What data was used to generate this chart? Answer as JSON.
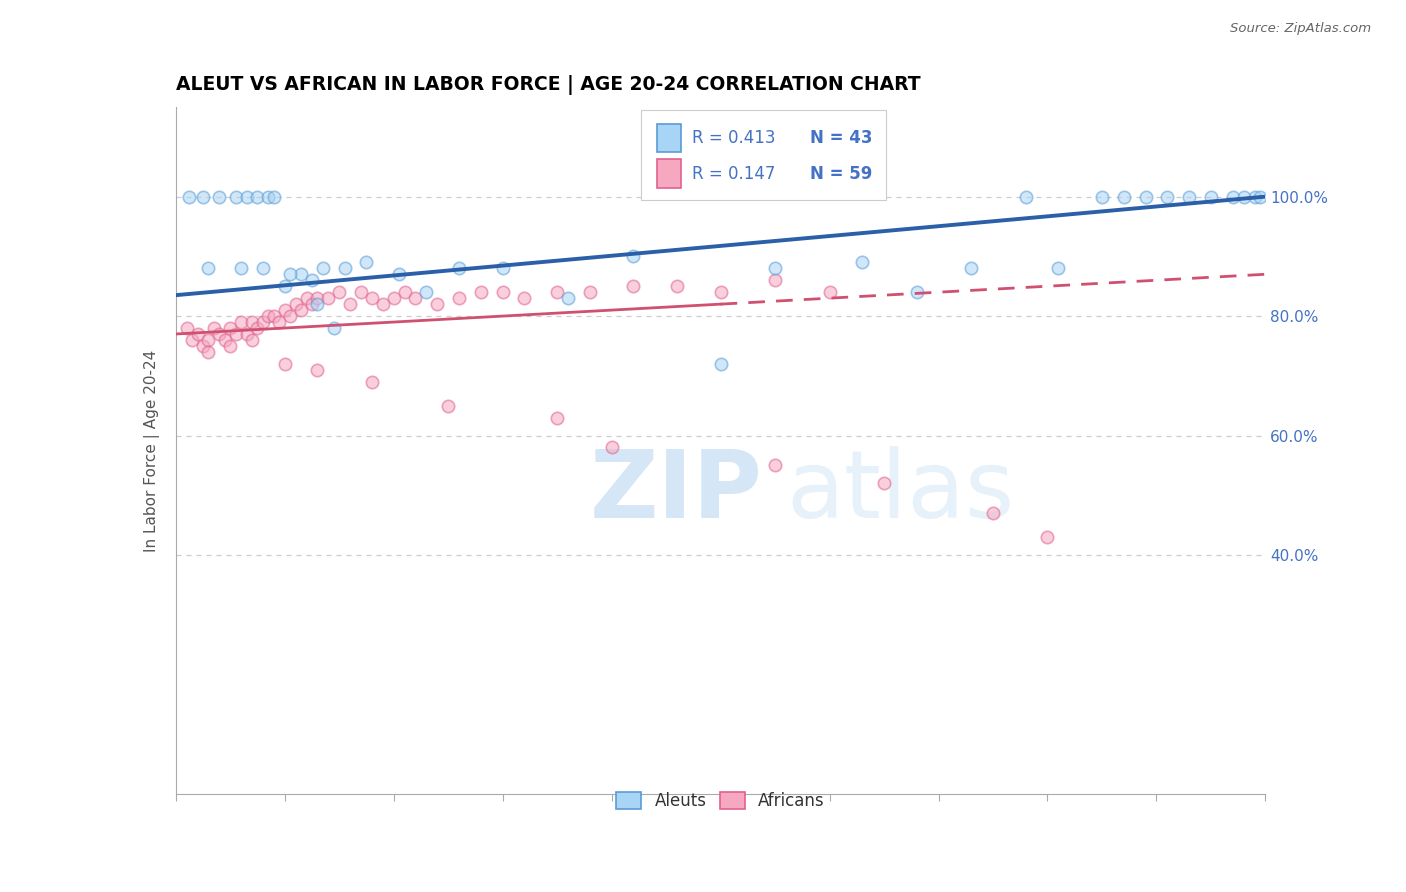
{
  "title": "ALEUT VS AFRICAN IN LABOR FORCE | AGE 20-24 CORRELATION CHART",
  "source": "Source: ZipAtlas.com",
  "ylabel": "In Labor Force | Age 20-24",
  "xlim": [
    0.0,
    100.0
  ],
  "ylim": [
    0.0,
    115.0
  ],
  "aleut_color": "#A8D4F5",
  "african_color": "#F5A8C0",
  "aleut_edge_color": "#5B9BD5",
  "african_edge_color": "#E06090",
  "trendline_aleut_color": "#2B5FA8",
  "trendline_african_color": "#D05070",
  "background_color": "#FFFFFF",
  "grid_color": "#CCCCCC",
  "axis_label_color": "#4472C4",
  "title_color": "#000000",
  "legend_R_aleut": "R = 0.413",
  "legend_N_aleut": "N = 43",
  "legend_R_african": "R = 0.147",
  "legend_N_african": "N = 59",
  "aleut_x": [
    1.2,
    2.5,
    4.0,
    5.5,
    6.5,
    7.5,
    8.5,
    9.0,
    10.0,
    11.5,
    12.5,
    13.0,
    14.5,
    3.0,
    6.0,
    8.0,
    10.5,
    13.5,
    15.5,
    17.5,
    20.5,
    23.0,
    26.0,
    30.0,
    36.0,
    42.0,
    50.0,
    55.0,
    63.0,
    68.0,
    73.0,
    78.0,
    81.0,
    85.0,
    87.0,
    89.0,
    91.0,
    93.0,
    95.0,
    97.0,
    98.0,
    99.0,
    99.5
  ],
  "aleut_y": [
    100.0,
    100.0,
    100.0,
    100.0,
    100.0,
    100.0,
    100.0,
    100.0,
    85.0,
    87.0,
    86.0,
    82.0,
    78.0,
    88.0,
    88.0,
    88.0,
    87.0,
    88.0,
    88.0,
    89.0,
    87.0,
    84.0,
    88.0,
    88.0,
    83.0,
    90.0,
    72.0,
    88.0,
    89.0,
    84.0,
    88.0,
    100.0,
    88.0,
    100.0,
    100.0,
    100.0,
    100.0,
    100.0,
    100.0,
    100.0,
    100.0,
    100.0,
    100.0
  ],
  "african_x": [
    1.0,
    1.5,
    2.0,
    2.5,
    3.0,
    3.5,
    4.0,
    4.5,
    5.0,
    5.5,
    6.0,
    6.5,
    7.0,
    7.5,
    8.0,
    8.5,
    9.0,
    9.5,
    10.0,
    10.5,
    11.0,
    11.5,
    12.0,
    12.5,
    13.0,
    14.0,
    15.0,
    16.0,
    17.0,
    18.0,
    19.0,
    20.0,
    21.0,
    22.0,
    24.0,
    26.0,
    28.0,
    30.0,
    32.0,
    35.0,
    38.0,
    42.0,
    46.0,
    50.0,
    55.0,
    60.0,
    3.0,
    5.0,
    7.0,
    10.0,
    13.0,
    18.0,
    25.0,
    35.0,
    40.0,
    55.0,
    65.0,
    75.0,
    80.0
  ],
  "african_y": [
    78.0,
    76.0,
    77.0,
    75.0,
    76.0,
    78.0,
    77.0,
    76.0,
    78.0,
    77.0,
    79.0,
    77.0,
    79.0,
    78.0,
    79.0,
    80.0,
    80.0,
    79.0,
    81.0,
    80.0,
    82.0,
    81.0,
    83.0,
    82.0,
    83.0,
    83.0,
    84.0,
    82.0,
    84.0,
    83.0,
    82.0,
    83.0,
    84.0,
    83.0,
    82.0,
    83.0,
    84.0,
    84.0,
    83.0,
    84.0,
    84.0,
    85.0,
    85.0,
    84.0,
    86.0,
    84.0,
    74.0,
    75.0,
    76.0,
    72.0,
    71.0,
    69.0,
    65.0,
    63.0,
    58.0,
    55.0,
    52.0,
    47.0,
    43.0
  ],
  "marker_size": 80,
  "marker_alpha": 0.55,
  "marker_linewidth": 1.2,
  "aleut_trendline_x0": 0.0,
  "aleut_trendline_y0": 83.5,
  "aleut_trendline_x1": 100.0,
  "aleut_trendline_y1": 100.0,
  "african_trendline_x0": 0.0,
  "african_trendline_y0": 77.0,
  "african_trendline_x1": 100.0,
  "african_trendline_y1": 87.0
}
